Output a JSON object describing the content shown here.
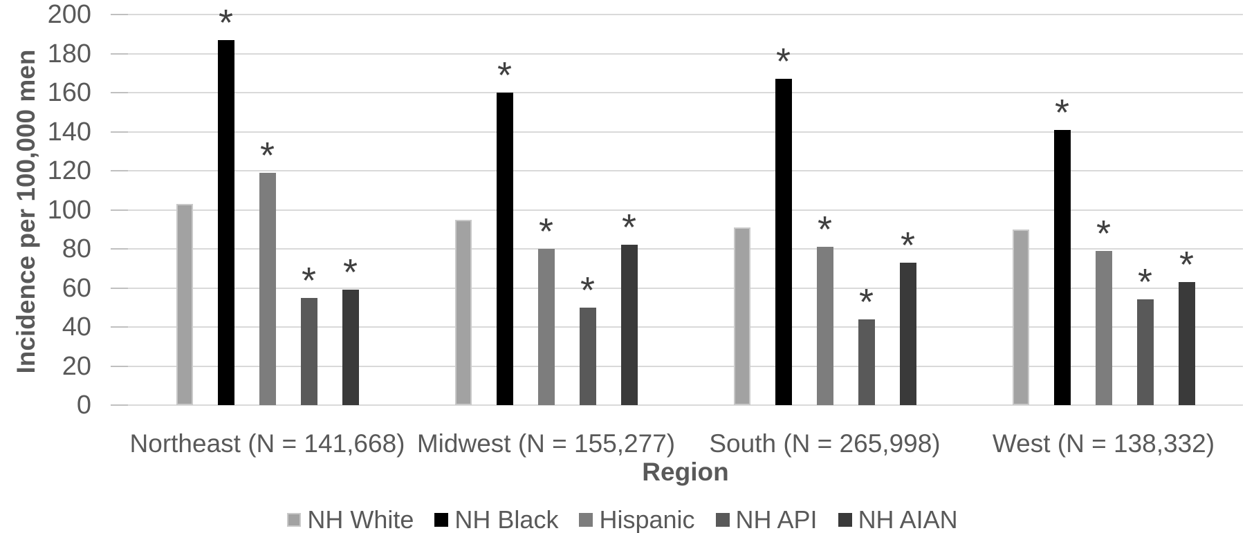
{
  "chart_data": {
    "type": "bar",
    "title": "",
    "xlabel": "Region",
    "ylabel": "Incidence per 100,000 men",
    "ylim": [
      0,
      200
    ],
    "ytick_step": 20,
    "yticks": [
      0,
      20,
      40,
      60,
      80,
      100,
      120,
      140,
      160,
      180,
      200
    ],
    "grid": true,
    "legend_position": "bottom",
    "significance_symbol": "*",
    "categories": [
      "Northeast (N = 141,668)",
      "Midwest (N = 155,277)",
      "South (N = 265,998)",
      "West (N = 138,332)"
    ],
    "series": [
      {
        "name": "NH White",
        "color": "#a2a2a2",
        "border_color": "#c9c9c9",
        "values": [
          103,
          95,
          91,
          90
        ],
        "significant": [
          false,
          false,
          false,
          false
        ]
      },
      {
        "name": "NH Black",
        "color": "#000000",
        "values": [
          187,
          160,
          167,
          141
        ],
        "significant": [
          true,
          true,
          true,
          true
        ]
      },
      {
        "name": "Hispanic",
        "color": "#7d7d7d",
        "values": [
          119,
          80,
          81,
          79
        ],
        "significant": [
          true,
          true,
          true,
          true
        ]
      },
      {
        "name": "NH API",
        "color": "#595959",
        "values": [
          55,
          50,
          44,
          54
        ],
        "significant": [
          true,
          true,
          true,
          true
        ]
      },
      {
        "name": "NH AIAN",
        "color": "#3a3a3a",
        "values": [
          59,
          82,
          73,
          63
        ],
        "significant": [
          true,
          true,
          true,
          true
        ]
      }
    ],
    "styles": {
      "text_color": "#595959",
      "gridline_color": "#d9d9d9",
      "tick_color": "#bfbfbf",
      "asterisk_color": "#404040"
    }
  }
}
